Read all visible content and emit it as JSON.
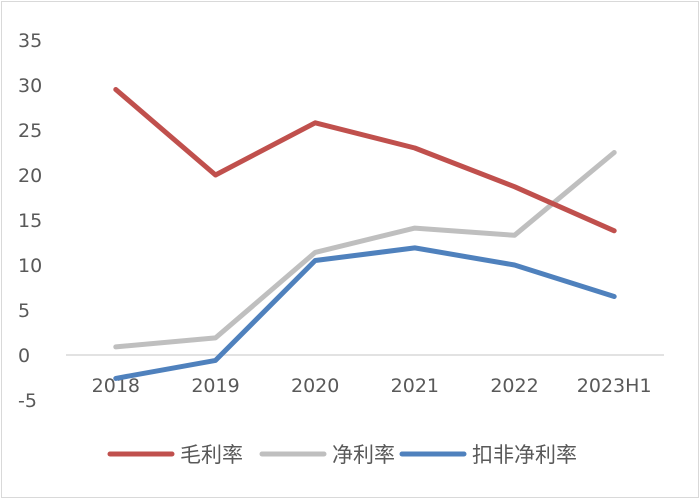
{
  "chart_data": {
    "type": "line",
    "title": "",
    "xlabel": "",
    "ylabel": "",
    "categories": [
      "2018",
      "2019",
      "2020",
      "2021",
      "2022",
      "2023H1"
    ],
    "ylim": [
      -5,
      35
    ],
    "yticks": [
      -5,
      0,
      5,
      10,
      15,
      20,
      25,
      30,
      35
    ],
    "grid": false,
    "legend_position": "bottom",
    "series": [
      {
        "name": "毛利率",
        "color": "#c0504d",
        "values": [
          29.5,
          20.0,
          25.8,
          23.0,
          18.7,
          13.8
        ]
      },
      {
        "name": "净利率",
        "color": "#bfbfbf",
        "values": [
          0.9,
          1.9,
          11.4,
          14.1,
          13.3,
          22.5
        ]
      },
      {
        "name": "扣非净利率",
        "color": "#4f81bd",
        "values": [
          -2.6,
          -0.6,
          10.5,
          11.9,
          10.0,
          6.5
        ]
      }
    ]
  }
}
